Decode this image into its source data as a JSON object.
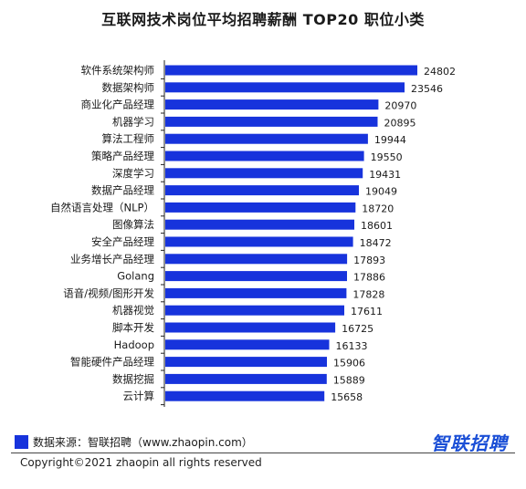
{
  "title": "互联网技术岗位平均招聘薪酬 TOP20 职位小类",
  "chart_data": {
    "type": "bar",
    "orientation": "horizontal",
    "categories": [
      "软件系统架构师",
      "数据架构师",
      "商业化产品经理",
      "机器学习",
      "算法工程师",
      "策略产品经理",
      "深度学习",
      "数据产品经理",
      "自然语言处理（NLP）",
      "图像算法",
      "安全产品经理",
      "业务增长产品经理",
      "Golang",
      "语音/视频/图形开发",
      "机器视觉",
      "脚本开发",
      "Hadoop",
      "智能硬件产品经理",
      "数据挖掘",
      "云计算"
    ],
    "values": [
      24802,
      23546,
      20970,
      20895,
      19944,
      19550,
      19431,
      19049,
      18720,
      18601,
      18472,
      17893,
      17886,
      17828,
      17611,
      16725,
      16133,
      15906,
      15889,
      15658
    ],
    "value_labels": [
      "24802",
      "23546",
      "20970",
      "20895",
      "19944",
      "19550",
      "19431",
      "19049",
      "18720",
      "18601",
      "18472",
      "17893",
      "17886",
      "17828",
      "17611",
      "16725",
      "16133",
      "15906",
      "15889",
      "15658"
    ],
    "bar_color": "#1733dc",
    "xlim": [
      0,
      24802
    ],
    "grid": false,
    "legend": "none"
  },
  "footer": {
    "source": "数据来源：智联招聘（www.zhaopin.com）",
    "brand": "智联招聘",
    "copyright": "Copyright©2021 zhaopin all rights reserved"
  }
}
